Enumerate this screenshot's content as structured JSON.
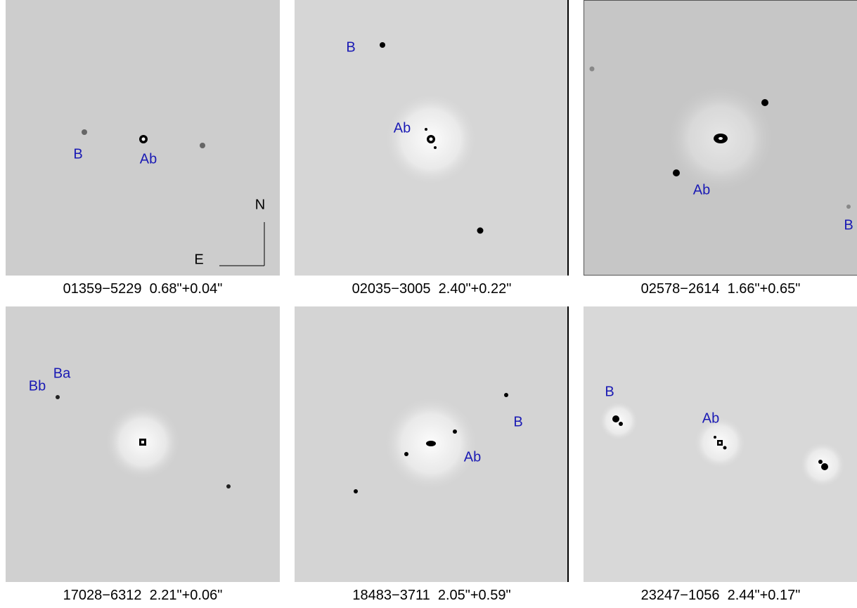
{
  "panels": [
    {
      "caption": "01359−5229  0.68\"+0.04\"",
      "labels": [
        "B",
        "Ab"
      ],
      "compass": [
        "N",
        "E"
      ]
    },
    {
      "caption": "02035−3005  2.40\"+0.22\"",
      "labels": [
        "B",
        "Ab"
      ]
    },
    {
      "caption": "02578−2614  1.66\"+0.65\"",
      "labels": [
        "Ab",
        "B"
      ]
    },
    {
      "caption": "17028−6312  2.21\"+0.06\"",
      "labels": [
        "Ba",
        "Bb"
      ]
    },
    {
      "caption": "18483−3711  2.05\"+0.59\"",
      "labels": [
        "B",
        "Ab"
      ]
    },
    {
      "caption": "23247−1056  2.44\"+0.17\"",
      "labels": [
        "B",
        "Ab"
      ]
    }
  ]
}
